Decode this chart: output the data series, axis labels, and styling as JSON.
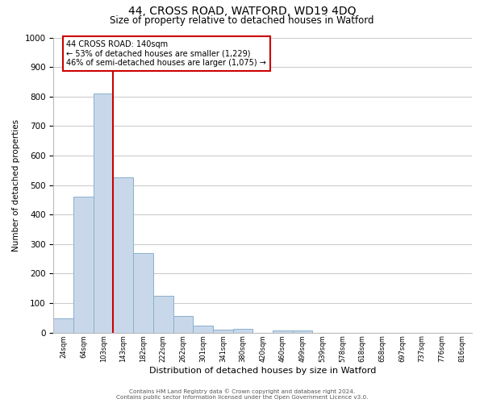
{
  "title": "44, CROSS ROAD, WATFORD, WD19 4DQ",
  "subtitle": "Size of property relative to detached houses in Watford",
  "xlabel": "Distribution of detached houses by size in Watford",
  "ylabel": "Number of detached properties",
  "categories": [
    "24sqm",
    "64sqm",
    "103sqm",
    "143sqm",
    "182sqm",
    "222sqm",
    "262sqm",
    "301sqm",
    "341sqm",
    "380sqm",
    "420sqm",
    "460sqm",
    "499sqm",
    "539sqm",
    "578sqm",
    "618sqm",
    "658sqm",
    "697sqm",
    "737sqm",
    "776sqm",
    "816sqm"
  ],
  "bar_values": [
    47,
    460,
    810,
    525,
    270,
    125,
    57,
    25,
    10,
    12,
    0,
    8,
    8,
    0,
    0,
    0,
    0,
    0,
    0,
    0,
    0
  ],
  "bar_color": "#c8d8ea",
  "bar_edge_color": "#8ab0cc",
  "vline_color": "#cc0000",
  "annotation_text": "44 CROSS ROAD: 140sqm\n← 53% of detached houses are smaller (1,229)\n46% of semi-detached houses are larger (1,075) →",
  "annotation_box_color": "#ffffff",
  "annotation_box_edge": "#cc0000",
  "ylim": [
    0,
    1000
  ],
  "yticks": [
    0,
    100,
    200,
    300,
    400,
    500,
    600,
    700,
    800,
    900,
    1000
  ],
  "bg_color": "#ffffff",
  "plot_bg_color": "#ffffff",
  "grid_color": "#cccccc",
  "footer_line1": "Contains HM Land Registry data © Crown copyright and database right 2024.",
  "footer_line2": "Contains public sector information licensed under the Open Government Licence v3.0.",
  "title_fontsize": 10,
  "subtitle_fontsize": 8.5,
  "ylabel_text": "Number of detached properties"
}
